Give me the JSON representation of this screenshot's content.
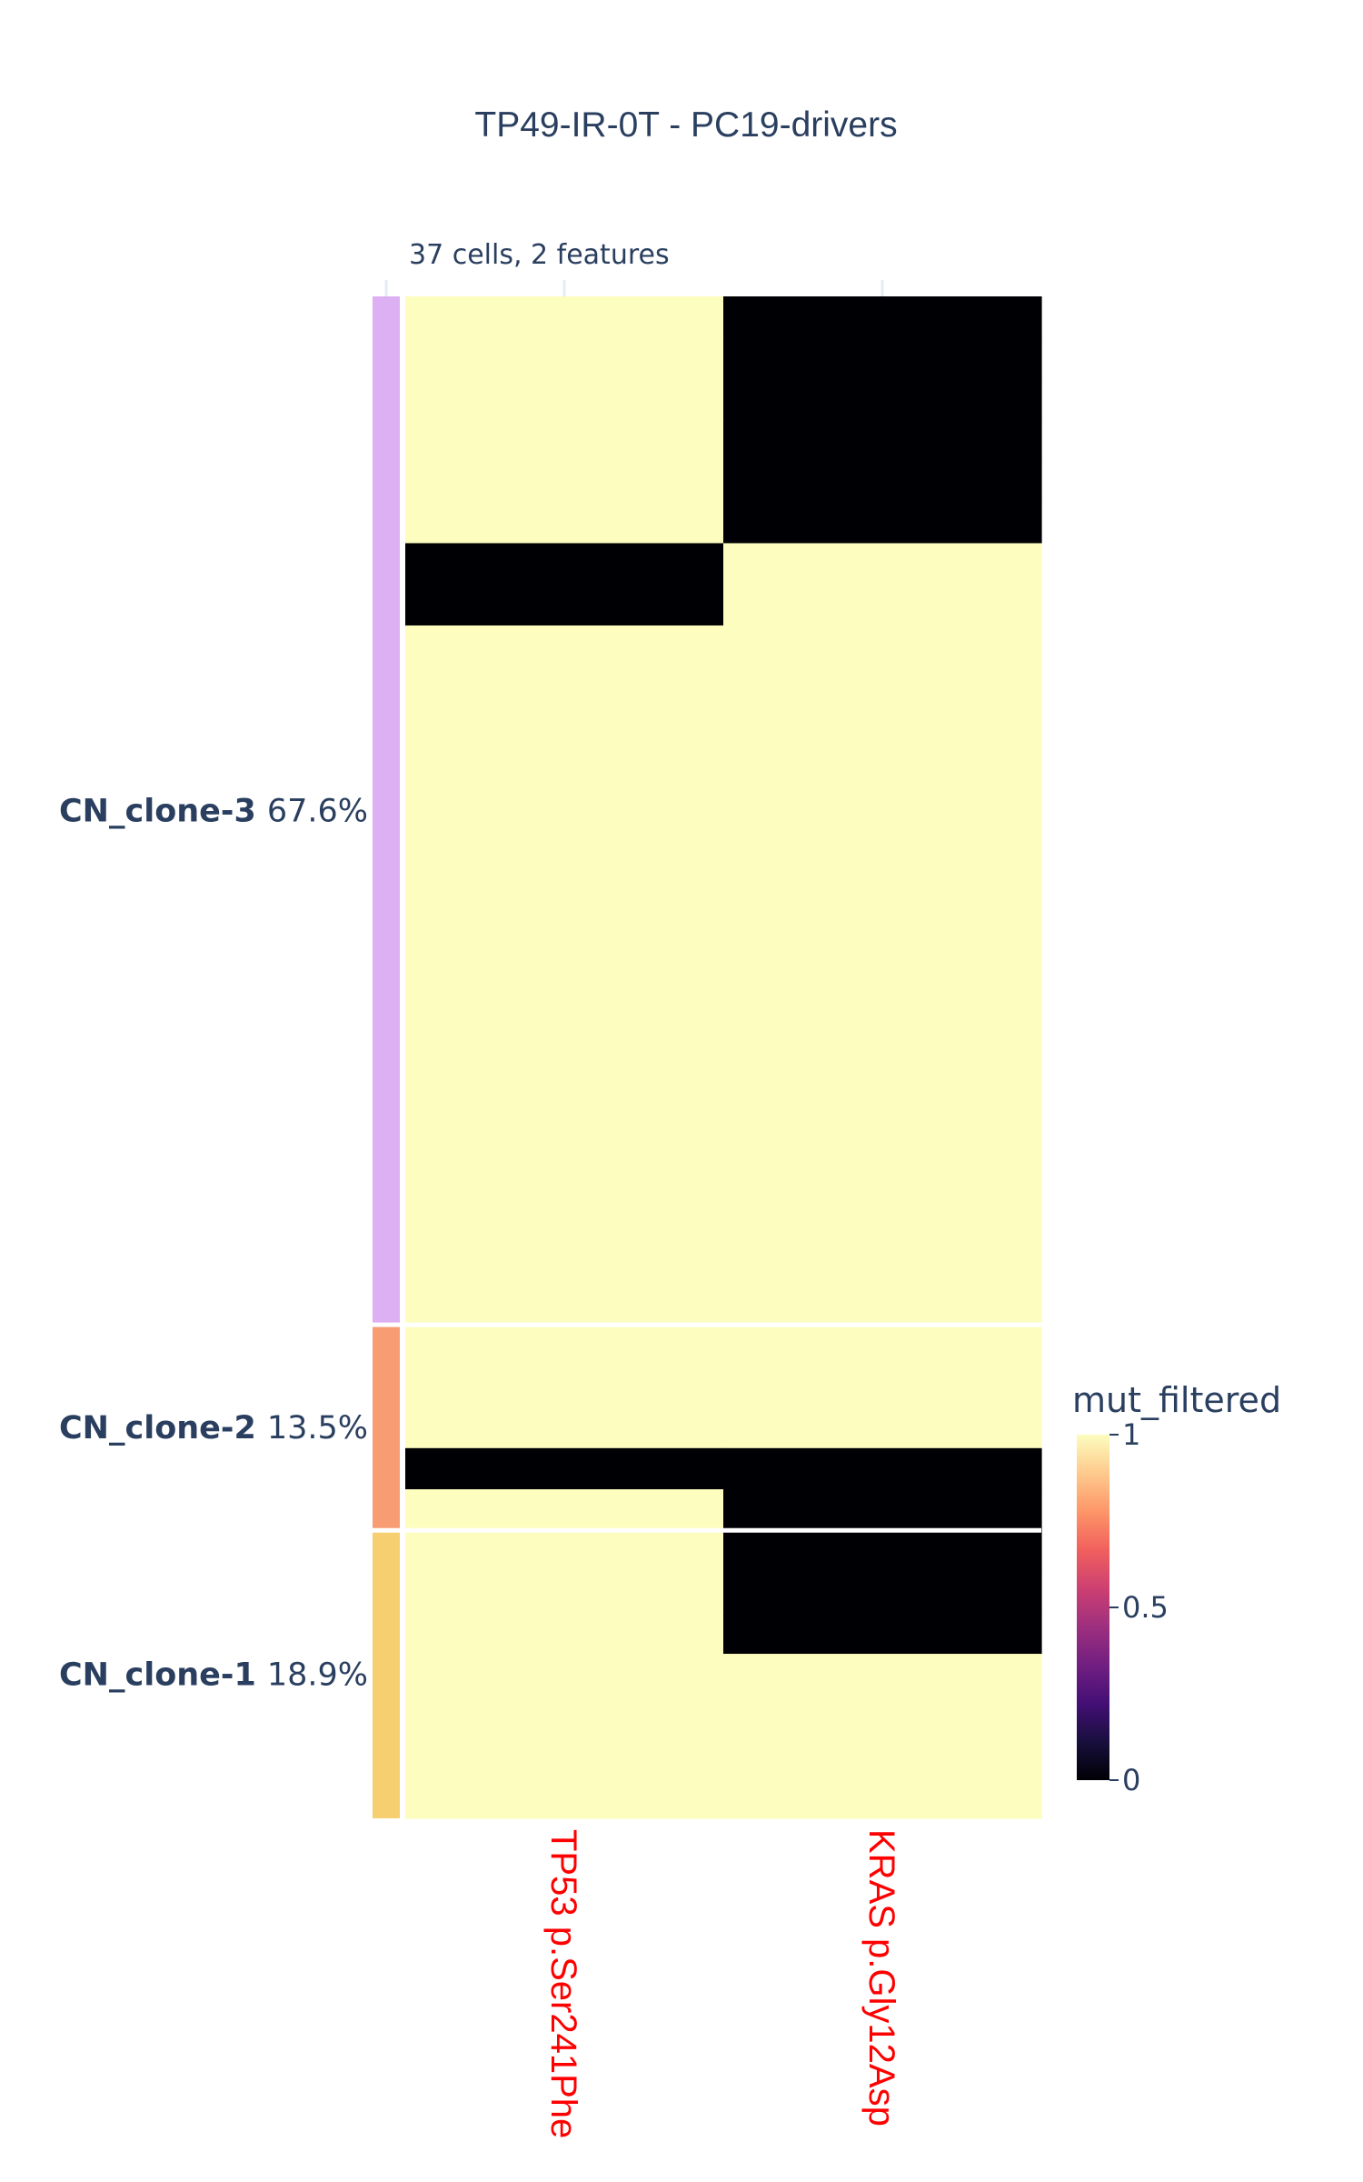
{
  "chart_data": {
    "type": "heatmap",
    "title": "TP49-IR-0T - PC19-drivers",
    "subtitle": "37 cells, 2 features",
    "features": [
      "TP53 p.Ser241Phe",
      "KRAS p.Gly12Asp"
    ],
    "n_cells": 37,
    "clones": [
      {
        "name": "CN_clone-3",
        "percent": "67.6%",
        "cells": 25,
        "color": "#dcb0f2",
        "rows": [
          [
            1,
            0
          ],
          [
            1,
            0
          ],
          [
            1,
            0
          ],
          [
            1,
            0
          ],
          [
            1,
            0
          ],
          [
            1,
            0
          ],
          [
            0,
            1
          ],
          [
            0,
            1
          ],
          [
            1,
            1
          ],
          [
            1,
            1
          ],
          [
            1,
            1
          ],
          [
            1,
            1
          ],
          [
            1,
            1
          ],
          [
            1,
            1
          ],
          [
            1,
            1
          ],
          [
            1,
            1
          ],
          [
            1,
            1
          ],
          [
            1,
            1
          ],
          [
            1,
            1
          ],
          [
            1,
            1
          ],
          [
            1,
            1
          ],
          [
            1,
            1
          ],
          [
            1,
            1
          ],
          [
            1,
            1
          ],
          [
            1,
            1
          ]
        ]
      },
      {
        "name": "CN_clone-2",
        "percent": "13.5%",
        "cells": 5,
        "color": "#f89c74",
        "rows": [
          [
            1,
            1
          ],
          [
            1,
            1
          ],
          [
            1,
            1
          ],
          [
            0,
            0
          ],
          [
            1,
            0
          ]
        ]
      },
      {
        "name": "CN_clone-1",
        "percent": "18.9%",
        "cells": 7,
        "color": "#f6cf71",
        "rows": [
          [
            1,
            0
          ],
          [
            1,
            0
          ],
          [
            1,
            0
          ],
          [
            1,
            1
          ],
          [
            1,
            1
          ],
          [
            1,
            1
          ],
          [
            1,
            1
          ]
        ]
      }
    ],
    "colorbar": {
      "title": "mut_filtered",
      "ticks": [
        0,
        0.5,
        1
      ],
      "range": [
        0,
        1
      ],
      "colorscale": [
        "#000004",
        "#180f3d",
        "#440f76",
        "#721f81",
        "#9e2f7f",
        "#cd4071",
        "#f1605d",
        "#fd9668",
        "#feca8d",
        "#fcfdbf"
      ]
    },
    "feature_label_color": "#ff0000"
  }
}
